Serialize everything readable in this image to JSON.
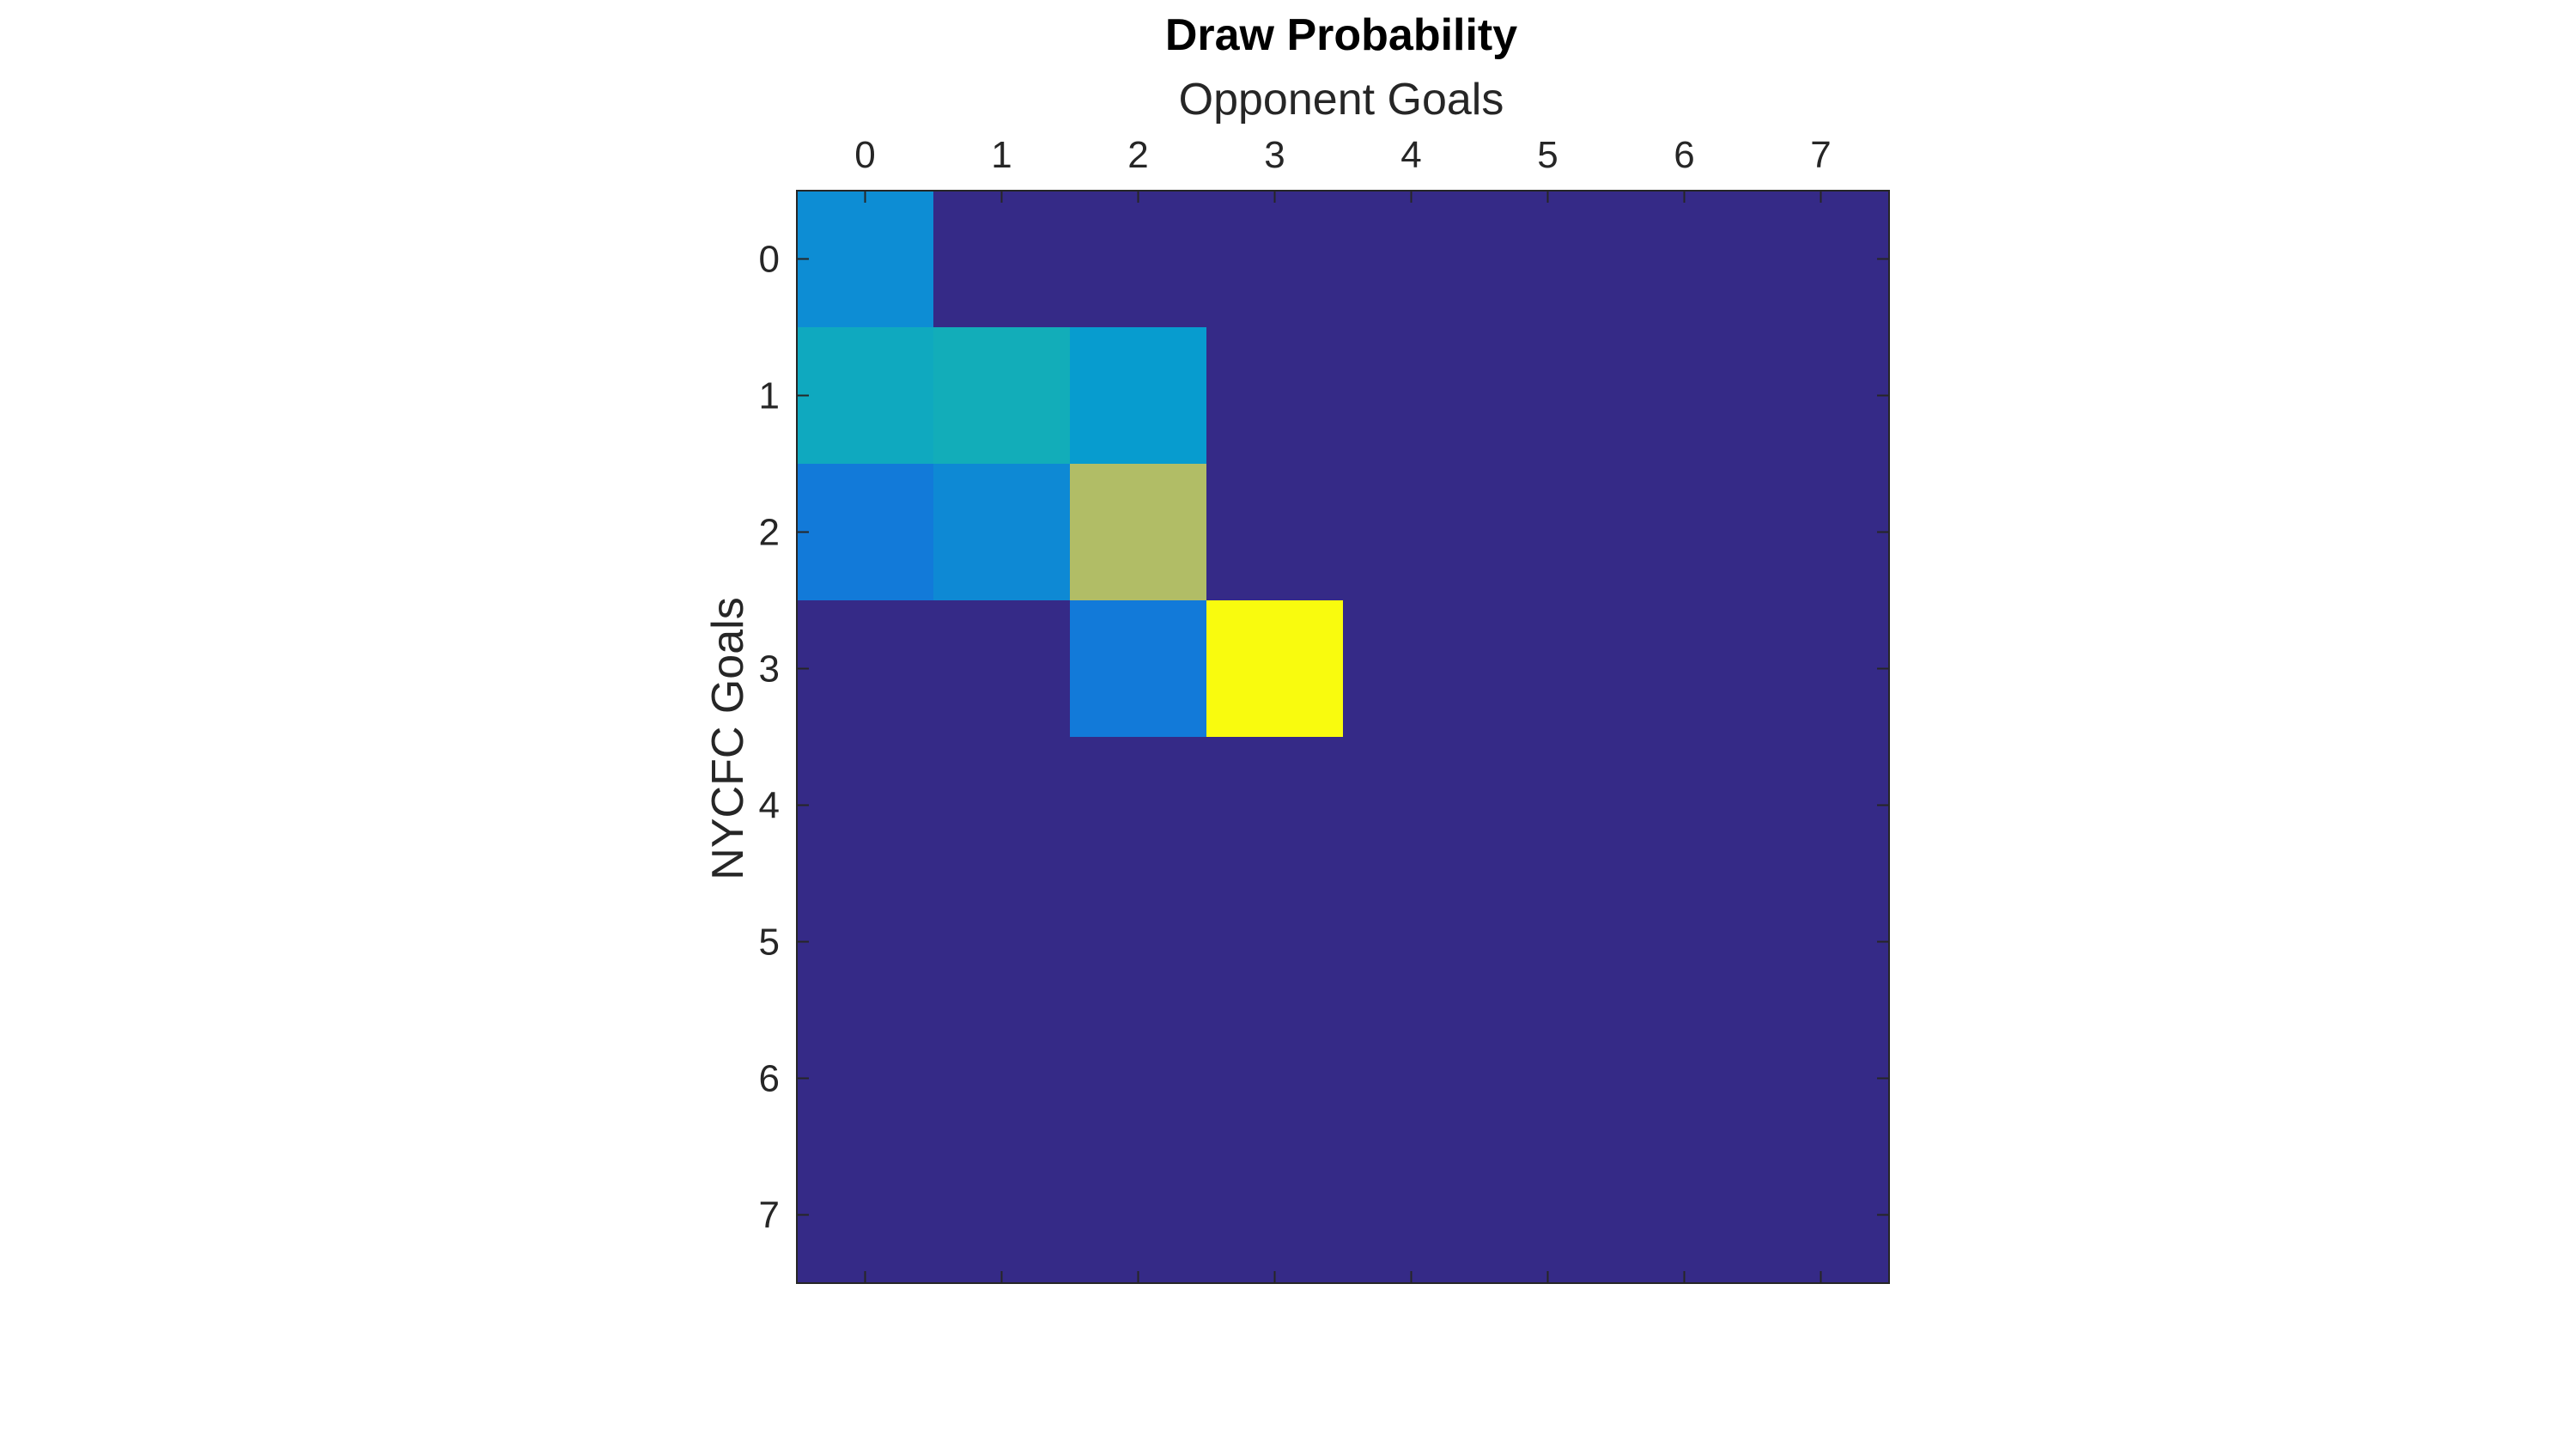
{
  "chart_data": {
    "type": "heatmap",
    "title": "Draw Probability",
    "xlabel": "Opponent Goals",
    "ylabel": "NYCFC Goals",
    "x_axis_position": "top",
    "y_direction": "reversed",
    "x_categories": [
      "0",
      "1",
      "2",
      "3",
      "4",
      "5",
      "6",
      "7"
    ],
    "y_categories": [
      "0",
      "1",
      "2",
      "3",
      "4",
      "5",
      "6",
      "7"
    ],
    "colormap": "parula",
    "colorbar": false,
    "grid": false,
    "clim": [
      0,
      1
    ],
    "values": [
      [
        0.25,
        0.0,
        0.0,
        0.0,
        0.0,
        0.0,
        0.0,
        0.0
      ],
      [
        0.36,
        0.38,
        0.3,
        0.0,
        0.0,
        0.0,
        0.0,
        0.0
      ],
      [
        0.19,
        0.24,
        0.62,
        0.0,
        0.0,
        0.0,
        0.0,
        0.0
      ],
      [
        0.0,
        0.0,
        0.19,
        1.0,
        0.0,
        0.0,
        0.0,
        0.0
      ],
      [
        0.0,
        0.0,
        0.0,
        0.0,
        0.0,
        0.0,
        0.0,
        0.0
      ],
      [
        0.0,
        0.0,
        0.0,
        0.0,
        0.0,
        0.0,
        0.0,
        0.0
      ],
      [
        0.0,
        0.0,
        0.0,
        0.0,
        0.0,
        0.0,
        0.0,
        0.0
      ],
      [
        0.0,
        0.0,
        0.0,
        0.0,
        0.0,
        0.0,
        0.0,
        0.0
      ]
    ]
  }
}
